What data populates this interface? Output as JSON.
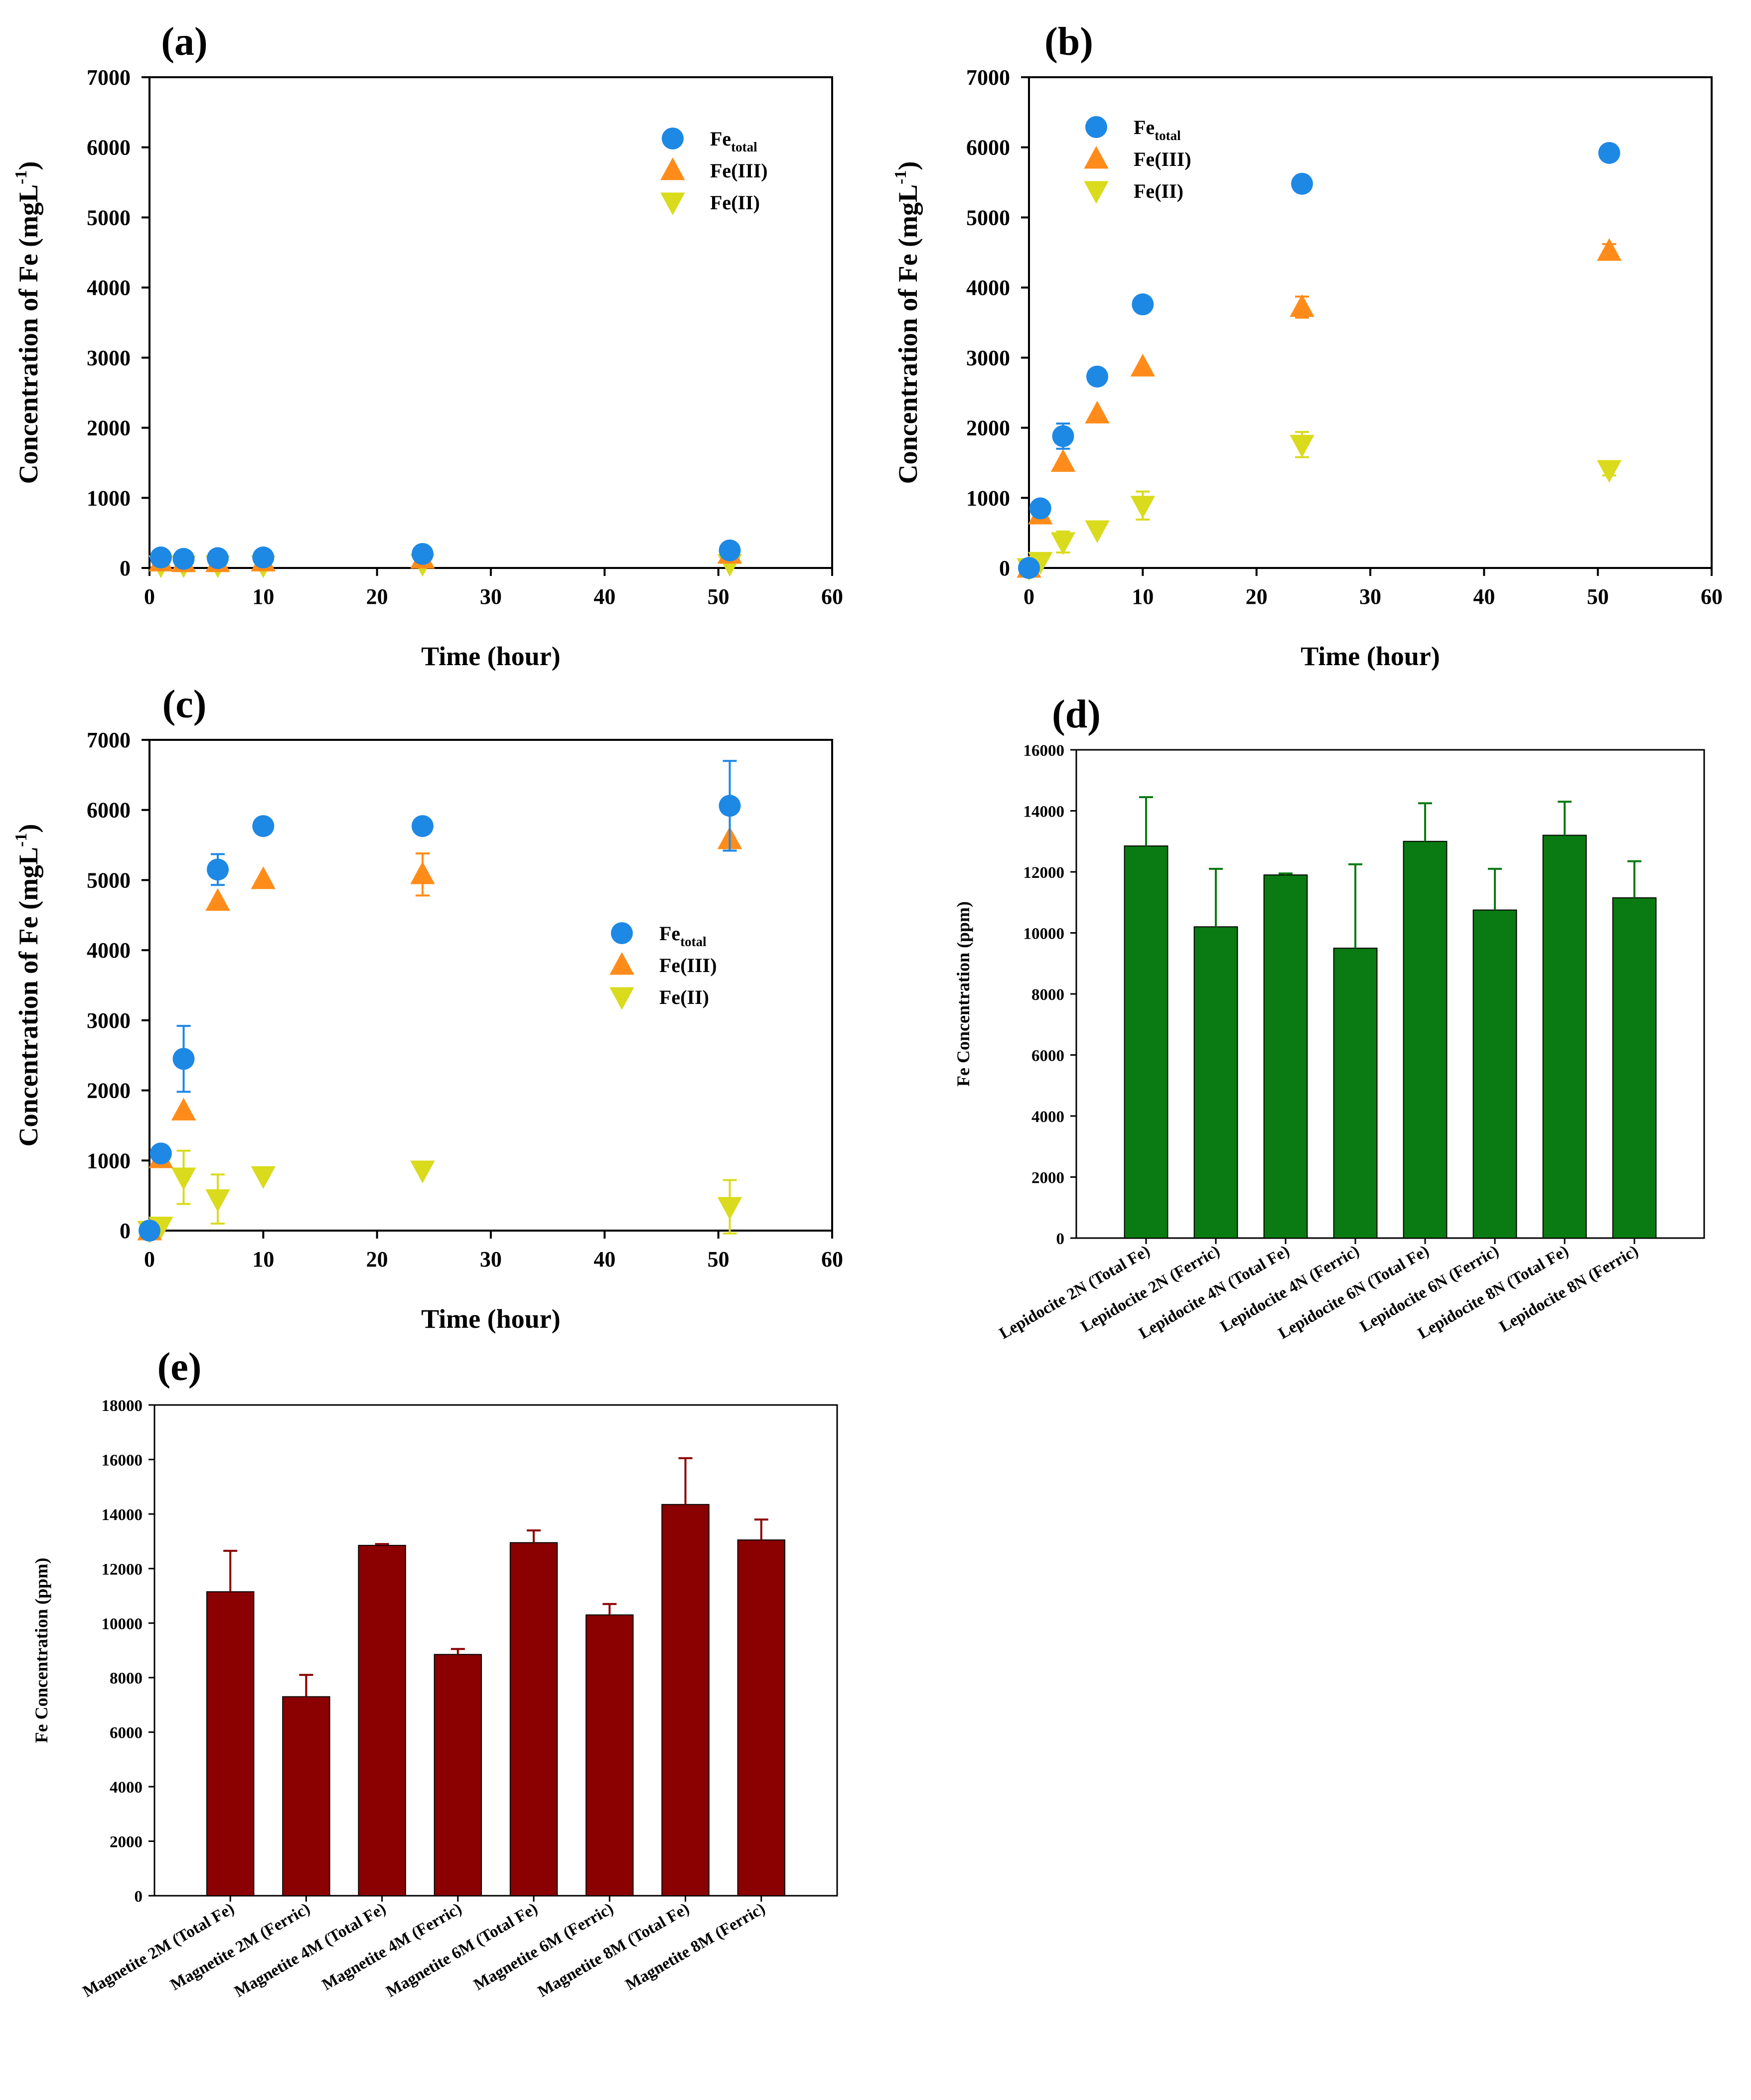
{
  "chart_data": [
    {
      "type": "scatter",
      "panel_label": "(a)",
      "xlabel": "Time (hour)",
      "ylabel": "Concentration of Fe (mgL",
      "ylabel_sup": "-1",
      "ylabel_close": ")",
      "xlim": [
        0,
        60
      ],
      "ylim": [
        0,
        7000
      ],
      "xticks": [
        0,
        10,
        20,
        30,
        40,
        50,
        60
      ],
      "yticks": [
        0,
        1000,
        2000,
        3000,
        4000,
        5000,
        6000,
        7000
      ],
      "x": [
        1,
        3,
        6,
        10,
        24,
        51
      ],
      "series": [
        {
          "name": "Fe",
          "name_sub": "total",
          "marker": "circle",
          "color": "#1E88E5",
          "values": [
            150,
            130,
            140,
            150,
            200,
            250
          ],
          "errors": [
            0,
            0,
            0,
            0,
            0,
            0
          ]
        },
        {
          "name": "Fe(III)",
          "marker": "triangle-up",
          "color": "#FF8C1A",
          "values": [
            90,
            80,
            80,
            90,
            130,
            200
          ],
          "errors": [
            0,
            0,
            0,
            0,
            0,
            0
          ]
        },
        {
          "name": "Fe(II)",
          "marker": "triangle-down",
          "color": "#D9DB1C",
          "values": [
            40,
            40,
            40,
            40,
            60,
            60
          ],
          "errors": [
            0,
            0,
            0,
            0,
            0,
            0
          ]
        }
      ],
      "legend_position": "top-right"
    },
    {
      "type": "scatter",
      "panel_label": "(b)",
      "xlabel": "Time (hour)",
      "ylabel": "Concentration of Fe (mgL",
      "ylabel_sup": "-1",
      "ylabel_close": ")",
      "xlim": [
        0,
        60
      ],
      "ylim": [
        0,
        7000
      ],
      "xticks": [
        0,
        10,
        20,
        30,
        40,
        50,
        60
      ],
      "yticks": [
        0,
        1000,
        2000,
        3000,
        4000,
        5000,
        6000,
        7000
      ],
      "x": [
        0,
        1,
        3,
        6,
        10,
        24,
        51
      ],
      "series": [
        {
          "name": "Fe",
          "name_sub": "total",
          "marker": "circle",
          "color": "#1E88E5",
          "values": [
            0,
            850,
            1880,
            2730,
            3760,
            5480,
            5920
          ],
          "errors": [
            0,
            0,
            180,
            0,
            0,
            0,
            0
          ]
        },
        {
          "name": "Fe(III)",
          "marker": "triangle-up",
          "color": "#FF8C1A",
          "values": [
            0,
            760,
            1510,
            2200,
            2870,
            3720,
            4520
          ],
          "errors": [
            0,
            0,
            0,
            0,
            0,
            150,
            100
          ]
        },
        {
          "name": "Fe(II)",
          "marker": "triangle-down",
          "color": "#D9DB1C",
          "values": [
            0,
            90,
            370,
            540,
            890,
            1760,
            1400
          ],
          "errors": [
            0,
            0,
            150,
            0,
            200,
            180,
            80
          ]
        }
      ],
      "legend_position": "top-left"
    },
    {
      "type": "scatter",
      "panel_label": "(c)",
      "xlabel": "Time (hour)",
      "ylabel": "Concentration of Fe (mgL",
      "ylabel_sup": "-1",
      "ylabel_close": ")",
      "xlim": [
        0,
        60
      ],
      "ylim": [
        0,
        7000
      ],
      "xticks": [
        0,
        10,
        20,
        30,
        40,
        50,
        60
      ],
      "yticks": [
        0,
        1000,
        2000,
        3000,
        4000,
        5000,
        6000,
        7000
      ],
      "x": [
        0,
        1,
        3,
        6,
        10,
        24,
        51
      ],
      "series": [
        {
          "name": "Fe",
          "name_sub": "total",
          "marker": "circle",
          "color": "#1E88E5",
          "values": [
            0,
            1100,
            2450,
            5150,
            5770,
            5770,
            6060
          ],
          "errors": [
            0,
            0,
            470,
            220,
            0,
            0,
            640
          ]
        },
        {
          "name": "Fe(III)",
          "marker": "triangle-up",
          "color": "#FF8C1A",
          "values": [
            0,
            1030,
            1710,
            4700,
            5010,
            5080,
            5580
          ],
          "errors": [
            0,
            0,
            0,
            0,
            0,
            300,
            0
          ]
        },
        {
          "name": "Fe(II)",
          "marker": "triangle-down",
          "color": "#D9DB1C",
          "values": [
            0,
            60,
            760,
            450,
            780,
            860,
            340
          ],
          "errors": [
            0,
            0,
            380,
            350,
            0,
            0,
            380
          ]
        }
      ],
      "legend_position": "center-right"
    },
    {
      "type": "bar",
      "panel_label": "(d)",
      "ylabel": "Fe Concentration (ppm)",
      "ylim": [
        0,
        16000
      ],
      "yticks": [
        0,
        2000,
        4000,
        6000,
        8000,
        10000,
        12000,
        14000,
        16000
      ],
      "color": "#0A7A12",
      "categories": [
        "Lepidocite 2N (Total Fe)",
        "Lepidocite 2N (Ferric)",
        "Lepidocite 4N (Total Fe)",
        "Lepidocite 4N (Ferric)",
        "Lepidocite 6N (Total Fe)",
        "Lepidocite 6N (Ferric)",
        "Lepidocite 8N (Total Fe)",
        "Lepidocite 8N (Ferric)"
      ],
      "values": [
        12850,
        10200,
        11900,
        9500,
        13000,
        10750,
        13200,
        11150
      ],
      "errors": [
        1600,
        1900,
        50,
        2750,
        1250,
        1350,
        1100,
        1200
      ]
    },
    {
      "type": "bar",
      "panel_label": "(e)",
      "ylabel": "Fe Concentration (ppm)",
      "ylim": [
        0,
        18000
      ],
      "yticks": [
        0,
        2000,
        4000,
        6000,
        8000,
        10000,
        12000,
        14000,
        16000,
        18000
      ],
      "color": "#8B0000",
      "categories": [
        "Magnetite 2M (Total Fe)",
        "Magnetite 2M (Ferric)",
        "Magnetite 4M (Total Fe)",
        "Magnetite 4M (Ferric)",
        "Magnetite 6M (Total Fe)",
        "Magnetite 6M (Ferric)",
        "Magnetite 8M (Total Fe)",
        "Magnetite 8M (Ferric)"
      ],
      "values": [
        11150,
        7300,
        12850,
        8850,
        12950,
        10300,
        14350,
        13050
      ],
      "errors": [
        1500,
        800,
        50,
        200,
        450,
        400,
        1700,
        750
      ]
    }
  ]
}
